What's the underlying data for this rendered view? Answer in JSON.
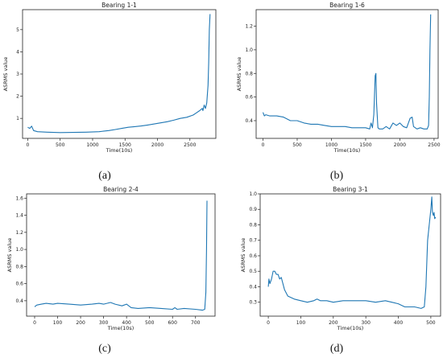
{
  "figure": {
    "line_color": "#1f77b4",
    "panels": [
      {
        "caption": "(a)"
      },
      {
        "caption": "(b)"
      },
      {
        "caption": "(c)"
      },
      {
        "caption": "(d)"
      }
    ]
  },
  "chart_data": [
    {
      "type": "line",
      "title": "Bearing 1-1",
      "xlabel": "Time(10s)",
      "ylabel": "ASRMS value",
      "xlim": [
        -80,
        2900
      ],
      "ylim": [
        0.1,
        5.9
      ],
      "xticks": [
        0,
        500,
        1000,
        1500,
        2000,
        2500
      ],
      "yticks": [
        1,
        2,
        3,
        4,
        5
      ],
      "x": [
        0,
        30,
        60,
        90,
        150,
        300,
        500,
        700,
        900,
        1100,
        1250,
        1350,
        1450,
        1550,
        1650,
        1750,
        1850,
        1950,
        2050,
        2150,
        2250,
        2350,
        2450,
        2550,
        2600,
        2650,
        2690,
        2700,
        2720,
        2740,
        2760,
        2780,
        2790,
        2800,
        2810
      ],
      "series": [
        {
          "values": [
            0.6,
            0.55,
            0.65,
            0.45,
            0.4,
            0.38,
            0.36,
            0.37,
            0.38,
            0.4,
            0.45,
            0.5,
            0.55,
            0.6,
            0.63,
            0.66,
            0.7,
            0.75,
            0.8,
            0.85,
            0.92,
            1.0,
            1.05,
            1.15,
            1.25,
            1.35,
            1.45,
            1.35,
            1.6,
            1.45,
            1.7,
            2.5,
            3.5,
            5.0,
            5.7
          ]
        }
      ],
      "grid": false
    },
    {
      "type": "line",
      "title": "Bearing 1-6",
      "xlabel": "Time(10s)",
      "ylabel": "ASRMS value",
      "xlim": [
        -100,
        2560
      ],
      "ylim": [
        0.25,
        1.34
      ],
      "xticks": [
        0,
        500,
        1000,
        1500,
        2000,
        2500
      ],
      "yticks": [
        0.4,
        0.6,
        0.8,
        1.0,
        1.2
      ],
      "x": [
        0,
        20,
        40,
        100,
        200,
        300,
        400,
        500,
        600,
        700,
        800,
        900,
        1000,
        1100,
        1200,
        1300,
        1400,
        1500,
        1560,
        1580,
        1600,
        1620,
        1640,
        1650,
        1660,
        1680,
        1700,
        1750,
        1800,
        1850,
        1900,
        1950,
        2000,
        2050,
        2100,
        2150,
        2180,
        2200,
        2250,
        2300,
        2350,
        2400,
        2420,
        2430,
        2440,
        2450
      ],
      "series": [
        {
          "values": [
            0.47,
            0.44,
            0.45,
            0.44,
            0.44,
            0.43,
            0.4,
            0.4,
            0.38,
            0.37,
            0.37,
            0.36,
            0.35,
            0.35,
            0.35,
            0.34,
            0.34,
            0.34,
            0.33,
            0.38,
            0.34,
            0.45,
            0.78,
            0.8,
            0.55,
            0.34,
            0.33,
            0.33,
            0.35,
            0.33,
            0.38,
            0.36,
            0.38,
            0.35,
            0.34,
            0.42,
            0.43,
            0.35,
            0.33,
            0.34,
            0.33,
            0.33,
            0.36,
            0.6,
            1.0,
            1.3
          ]
        }
      ],
      "grid": false
    },
    {
      "type": "line",
      "title": "Bearing 2-4",
      "xlabel": "Time(10s)",
      "ylabel": "ASRMS value",
      "xlim": [
        -35,
        785
      ],
      "ylim": [
        0.22,
        1.65
      ],
      "xticks": [
        0,
        100,
        200,
        300,
        400,
        500,
        600,
        700
      ],
      "yticks": [
        0.4,
        0.6,
        0.8,
        1.0,
        1.2,
        1.4,
        1.6
      ],
      "x": [
        0,
        10,
        30,
        50,
        80,
        100,
        150,
        200,
        250,
        280,
        300,
        330,
        350,
        380,
        400,
        420,
        450,
        500,
        550,
        600,
        610,
        620,
        650,
        700,
        730,
        740,
        745,
        748,
        750
      ],
      "series": [
        {
          "values": [
            0.33,
            0.35,
            0.36,
            0.37,
            0.36,
            0.37,
            0.36,
            0.35,
            0.36,
            0.37,
            0.36,
            0.38,
            0.36,
            0.34,
            0.36,
            0.32,
            0.31,
            0.32,
            0.31,
            0.3,
            0.32,
            0.3,
            0.31,
            0.3,
            0.29,
            0.3,
            0.5,
            1.0,
            1.57
          ]
        }
      ],
      "grid": false
    },
    {
      "type": "line",
      "title": "Bearing 3-1",
      "xlabel": "Time(10s)",
      "ylabel": "ASRMS value",
      "xlim": [
        -25,
        530
      ],
      "ylim": [
        0.21,
        1.0
      ],
      "xticks": [
        0,
        100,
        200,
        300,
        400,
        500
      ],
      "yticks": [
        0.3,
        0.4,
        0.5,
        0.6,
        0.7,
        0.8,
        0.9,
        1.0
      ],
      "x": [
        0,
        2,
        5,
        10,
        15,
        20,
        25,
        30,
        35,
        40,
        50,
        60,
        70,
        80,
        100,
        120,
        140,
        150,
        160,
        180,
        200,
        230,
        260,
        300,
        330,
        360,
        380,
        400,
        420,
        450,
        470,
        480,
        485,
        490,
        495,
        500,
        503,
        505,
        508,
        510,
        512,
        515
      ],
      "series": [
        {
          "values": [
            0.4,
            0.45,
            0.42,
            0.45,
            0.5,
            0.5,
            0.48,
            0.48,
            0.45,
            0.46,
            0.38,
            0.34,
            0.33,
            0.32,
            0.31,
            0.3,
            0.31,
            0.32,
            0.31,
            0.31,
            0.3,
            0.31,
            0.31,
            0.31,
            0.3,
            0.31,
            0.3,
            0.29,
            0.27,
            0.27,
            0.26,
            0.27,
            0.4,
            0.7,
            0.8,
            0.9,
            0.98,
            0.88,
            0.86,
            0.88,
            0.84,
            0.85
          ]
        }
      ],
      "grid": false
    }
  ]
}
